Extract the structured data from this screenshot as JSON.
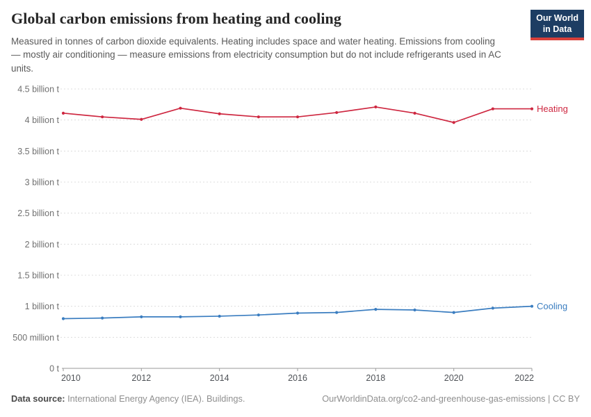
{
  "header": {
    "title": "Global carbon emissions from heating and cooling",
    "subtitle": "Measured in tonnes of carbon dioxide equivalents. Heating includes space and water heating. Emissions from cooling — mostly air conditioning — measure emissions from electricity consumption but do not include refrigerants used in AC units.",
    "logo": {
      "line1": "Our World",
      "line2": "in Data"
    }
  },
  "chart_data": {
    "type": "line",
    "title": "Global carbon emissions from heating and cooling",
    "x": [
      2010,
      2011,
      2012,
      2013,
      2014,
      2015,
      2016,
      2017,
      2018,
      2019,
      2020,
      2021,
      2022
    ],
    "xticks": [
      2010,
      2012,
      2014,
      2016,
      2018,
      2020,
      2022
    ],
    "ylim": [
      0,
      4.5
    ],
    "y_unit": "tonnes of CO2 equivalents",
    "ytick_values": [
      0,
      0.5,
      1,
      1.5,
      2,
      2.5,
      3,
      3.5,
      4,
      4.5
    ],
    "ytick_labels": [
      "0 t",
      "500 million t",
      "1 billion t",
      "1.5 billion t",
      "2 billion t",
      "2.5 billion t",
      "3 billion t",
      "3.5 billion t",
      "4 billion t",
      "4.5 billion t"
    ],
    "grid": "horizontal-dashed",
    "legend_position": "line-end-labels",
    "series": [
      {
        "name": "Heating",
        "color": "#ce2740",
        "values": [
          4.11,
          4.05,
          4.01,
          4.19,
          4.1,
          4.05,
          4.05,
          4.12,
          4.21,
          4.11,
          3.96,
          4.18,
          4.18
        ]
      },
      {
        "name": "Cooling",
        "color": "#3a7dc0",
        "values": [
          0.8,
          0.81,
          0.83,
          0.83,
          0.84,
          0.86,
          0.89,
          0.9,
          0.95,
          0.94,
          0.9,
          0.97,
          1.0
        ]
      }
    ]
  },
  "footer": {
    "source_label": "Data source:",
    "source_text": " International Energy Agency (IEA). Buildings.",
    "credit": "OurWorldinData.org/co2-and-greenhouse-gas-emissions | CC BY"
  },
  "colors": {
    "grid": "#dcdcdc",
    "axis": "#9a9a9a",
    "ytick_text": "#707070",
    "xtick_text": "#4e5257",
    "logo_bg": "#1d3d63",
    "logo_accent": "#d8403a"
  }
}
